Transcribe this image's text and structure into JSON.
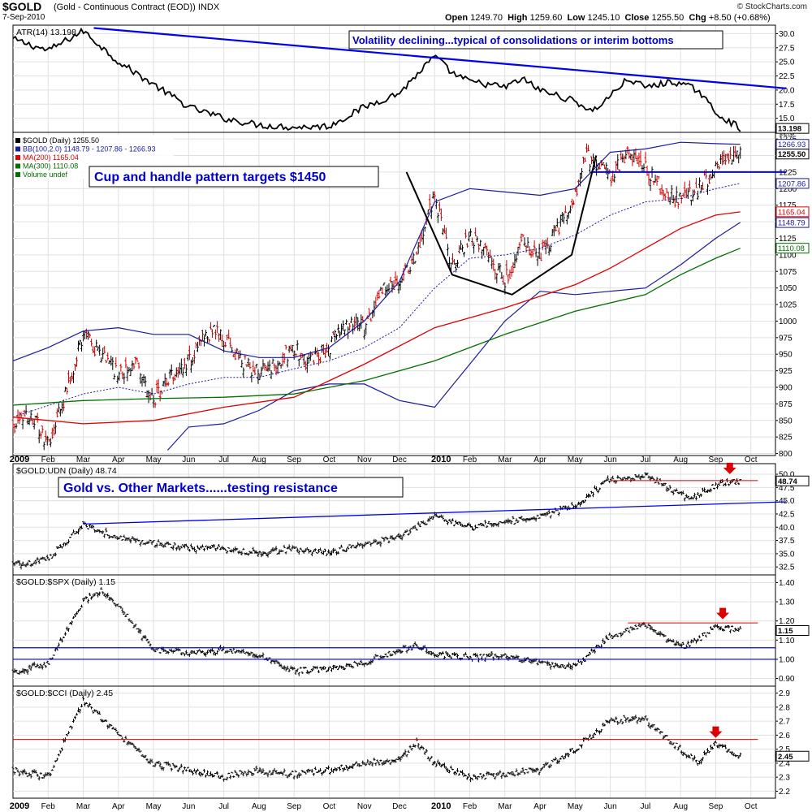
{
  "header": {
    "ticker": "$GOLD",
    "description": "(Gold - Continuous Contract (EOD))  INDX",
    "date": "7-Sep-2010",
    "quote": {
      "open_label": "Open",
      "open": "1249.70",
      "high_label": "High",
      "high": "1259.60",
      "low_label": "Low",
      "low": "1245.10",
      "close_label": "Close",
      "close": "1255.50",
      "chg_label": "Chg",
      "chg": "+8.50 (+0.68%)"
    },
    "credit": "© StockCharts.com",
    "arrow": "▲"
  },
  "colors": {
    "price_up": "#000000",
    "price_down": "#cc0000",
    "bollinger": "#1a1aa0",
    "ma200": "#e00000",
    "ma300": "#007000",
    "trend": "#0000ee",
    "resistance": "#dd0000",
    "annotation_text": "#0000cc",
    "grid": "#e0e0e0"
  },
  "chart_data": [
    {
      "id": "atr",
      "type": "line",
      "label": "ATR(14) 13.198",
      "y_ticks": [
        "30.0",
        "27.5",
        "25.0",
        "22.5",
        "20.0",
        "17.5",
        "15.0",
        "12.5"
      ],
      "ylim": [
        12.5,
        31.5
      ],
      "last_value": "13.198",
      "anchors": [
        [
          0,
          29
        ],
        [
          1,
          27
        ],
        [
          2,
          30.5
        ],
        [
          3,
          25
        ],
        [
          4,
          21
        ],
        [
          5,
          17
        ],
        [
          6,
          15
        ],
        [
          7,
          13.8
        ],
        [
          8,
          13.4
        ],
        [
          9,
          13.6
        ],
        [
          10,
          17
        ],
        [
          11,
          19.5
        ],
        [
          12,
          26
        ],
        [
          12.5,
          23
        ],
        [
          13,
          21.5
        ],
        [
          14,
          20.5
        ],
        [
          14.5,
          22
        ],
        [
          15,
          20
        ],
        [
          16,
          18
        ],
        [
          16.5,
          16.2
        ],
        [
          17,
          19
        ],
        [
          17.5,
          22
        ],
        [
          18,
          20.5
        ],
        [
          18.8,
          21.5
        ],
        [
          19.5,
          20
        ],
        [
          20,
          16
        ],
        [
          20.7,
          13.2
        ]
      ],
      "annotation": "Volatility declining...typical of consolidations or interim bottoms",
      "trendline": [
        [
          2.3,
          31
        ],
        [
          22,
          20.3
        ]
      ]
    },
    {
      "id": "price",
      "type": "ohlc",
      "legend": [
        {
          "text": "$GOLD (Daily) 1255.50",
          "color": "#000000"
        },
        {
          "text": "BB(100,2.0) 1148.79 - 1207.86 - 1266.93",
          "color": "#1a1aa0"
        },
        {
          "text": "MA(200) 1165.04",
          "color": "#e00000"
        },
        {
          "text": "MA(300) 1110.08",
          "color": "#007000"
        },
        {
          "text": "Volume undef",
          "color": "#007000"
        }
      ],
      "y_ticks": [
        "1275",
        "1250",
        "1225",
        "1200",
        "1175",
        "1150",
        "1125",
        "1100",
        "1075",
        "1050",
        "1025",
        "1000",
        "975",
        "950",
        "925",
        "900",
        "875",
        "850",
        "825",
        "800"
      ],
      "ylim": [
        797,
        1285
      ],
      "anchors": [
        [
          0,
          840
        ],
        [
          0.5,
          860
        ],
        [
          1,
          815
        ],
        [
          1.5,
          890
        ],
        [
          2,
          980
        ],
        [
          2.5,
          950
        ],
        [
          3,
          920
        ],
        [
          3.5,
          940
        ],
        [
          4,
          880
        ],
        [
          4.5,
          920
        ],
        [
          5,
          940
        ],
        [
          5.7,
          990
        ],
        [
          6.5,
          940
        ],
        [
          7,
          920
        ],
        [
          7.5,
          935
        ],
        [
          8,
          960
        ],
        [
          8.5,
          940
        ],
        [
          9,
          960
        ],
        [
          9.5,
          1000
        ],
        [
          10,
          990
        ],
        [
          10.5,
          1050
        ],
        [
          11,
          1060
        ],
        [
          11.5,
          1100
        ],
        [
          12,
          1190
        ],
        [
          12.5,
          1080
        ],
        [
          13,
          1130
        ],
        [
          13.5,
          1100
        ],
        [
          14,
          1060
        ],
        [
          14.5,
          1120
        ],
        [
          15,
          1100
        ],
        [
          15.5,
          1140
        ],
        [
          16,
          1190
        ],
        [
          16.3,
          1250
        ],
        [
          17,
          1220
        ],
        [
          17.5,
          1250
        ],
        [
          18,
          1230
        ],
        [
          18.5,
          1200
        ],
        [
          19,
          1180
        ],
        [
          19.5,
          1200
        ],
        [
          20,
          1230
        ],
        [
          20.7,
          1255
        ]
      ],
      "bb_upper": [
        [
          0,
          940
        ],
        [
          1,
          960
        ],
        [
          2,
          985
        ],
        [
          3,
          990
        ],
        [
          4,
          980
        ],
        [
          5,
          980
        ],
        [
          6,
          955
        ],
        [
          7,
          945
        ],
        [
          8,
          945
        ],
        [
          9,
          960
        ],
        [
          10,
          1000
        ],
        [
          11,
          1060
        ],
        [
          12,
          1180
        ],
        [
          13,
          1200
        ],
        [
          14,
          1195
        ],
        [
          15,
          1190
        ],
        [
          16,
          1200
        ],
        [
          17,
          1255
        ],
        [
          18,
          1260
        ],
        [
          19,
          1270
        ],
        [
          20,
          1268
        ],
        [
          20.7,
          1267
        ]
      ],
      "bb_mid": [
        [
          0,
          855
        ],
        [
          2,
          890
        ],
        [
          3,
          900
        ],
        [
          4,
          890
        ],
        [
          5,
          905
        ],
        [
          6,
          915
        ],
        [
          7,
          915
        ],
        [
          8,
          928
        ],
        [
          9,
          940
        ],
        [
          10,
          960
        ],
        [
          11,
          990
        ],
        [
          12,
          1050
        ],
        [
          13,
          1095
        ],
        [
          14,
          1100
        ],
        [
          15,
          1110
        ],
        [
          16,
          1130
        ],
        [
          17,
          1160
        ],
        [
          18,
          1180
        ],
        [
          19,
          1185
        ],
        [
          20,
          1200
        ],
        [
          20.7,
          1208
        ]
      ],
      "bb_lower": [
        [
          4.4,
          805
        ],
        [
          5,
          840
        ],
        [
          6,
          845
        ],
        [
          7,
          865
        ],
        [
          8,
          895
        ],
        [
          9,
          905
        ],
        [
          10,
          905
        ],
        [
          11,
          880
        ],
        [
          12,
          870
        ],
        [
          13,
          935
        ],
        [
          14,
          1000
        ],
        [
          15,
          1045
        ],
        [
          16,
          1040
        ],
        [
          17,
          1045
        ],
        [
          18,
          1050
        ],
        [
          19,
          1085
        ],
        [
          20,
          1125
        ],
        [
          20.7,
          1149
        ]
      ],
      "ma200": [
        [
          0,
          855
        ],
        [
          2,
          845
        ],
        [
          4,
          850
        ],
        [
          6,
          870
        ],
        [
          8,
          885
        ],
        [
          10,
          935
        ],
        [
          12,
          990
        ],
        [
          14,
          1020
        ],
        [
          16,
          1055
        ],
        [
          17,
          1080
        ],
        [
          18,
          1110
        ],
        [
          19,
          1140
        ],
        [
          20,
          1160
        ],
        [
          20.7,
          1165
        ]
      ],
      "ma300": [
        [
          0,
          873
        ],
        [
          2,
          880
        ],
        [
          4,
          883
        ],
        [
          6,
          885
        ],
        [
          8,
          890
        ],
        [
          10,
          910
        ],
        [
          12,
          940
        ],
        [
          14,
          980
        ],
        [
          16,
          1015
        ],
        [
          18,
          1040
        ],
        [
          19,
          1070
        ],
        [
          20,
          1095
        ],
        [
          20.7,
          1110
        ]
      ],
      "annotation": "Cup and handle pattern targets $1450",
      "cup_path": [
        [
          11.2,
          1225
        ],
        [
          12.5,
          1070
        ],
        [
          14.2,
          1040
        ],
        [
          15.9,
          1100
        ],
        [
          16.6,
          1250
        ]
      ],
      "handle_line": [
        [
          16.5,
          1225
        ],
        [
          22,
          1225
        ]
      ],
      "price_labels": [
        {
          "text": "1266.93",
          "value": 1266.93,
          "color": "#1a1aa0"
        },
        {
          "text": "1255.50",
          "value": 1255.5,
          "color": "#000000"
        },
        {
          "text": "1207.86",
          "value": 1207.86,
          "color": "#1a1aa0"
        },
        {
          "text": "1165.04",
          "value": 1165.04,
          "color": "#e00000"
        },
        {
          "text": "1148.79",
          "value": 1148.79,
          "color": "#1a1aa0"
        },
        {
          "text": "1110.08",
          "value": 1110.08,
          "color": "#007000"
        }
      ]
    },
    {
      "id": "udn",
      "type": "ohlc",
      "label": "$GOLD:UDN (Daily) 48.74",
      "y_ticks": [
        "50.0",
        "47.5",
        "45.0",
        "42.5",
        "40.0",
        "37.5",
        "35.0",
        "32.5"
      ],
      "ylim": [
        31,
        52
      ],
      "last_value": "48.74",
      "anchors": [
        [
          0,
          33
        ],
        [
          1,
          34
        ],
        [
          2,
          40.5
        ],
        [
          3,
          38
        ],
        [
          4,
          37
        ],
        [
          5,
          36
        ],
        [
          6,
          36
        ],
        [
          7,
          35
        ],
        [
          8,
          36
        ],
        [
          9,
          35
        ],
        [
          10,
          37
        ],
        [
          11,
          38
        ],
        [
          12,
          42
        ],
        [
          13,
          40
        ],
        [
          14,
          41
        ],
        [
          15,
          42
        ],
        [
          16,
          44
        ],
        [
          17,
          49
        ],
        [
          17.5,
          49
        ],
        [
          18,
          50
        ],
        [
          18.5,
          48
        ],
        [
          19,
          46
        ],
        [
          19.5,
          46
        ],
        [
          20,
          48
        ],
        [
          20.7,
          48.74
        ]
      ],
      "annotation": "Gold vs. Other Markets......testing resistance",
      "trendline": [
        [
          2,
          40.6
        ],
        [
          22,
          44.8
        ]
      ],
      "resistance": [
        [
          17,
          48.8
        ],
        [
          21.2,
          48.8
        ]
      ],
      "arrow_at": [
        20.4,
        50.8
      ]
    },
    {
      "id": "spx",
      "type": "ohlc",
      "label": "$GOLD:$SPX (Daily) 1.15",
      "y_ticks": [
        "1.40",
        "1.30",
        "1.20",
        "1.10",
        "1.00",
        "0.90"
      ],
      "ylim": [
        0.86,
        1.44
      ],
      "last_value": "1.15",
      "anchors": [
        [
          0,
          0.93
        ],
        [
          1,
          0.98
        ],
        [
          2,
          1.3
        ],
        [
          2.5,
          1.36
        ],
        [
          3,
          1.28
        ],
        [
          4,
          1.05
        ],
        [
          5,
          1.03
        ],
        [
          6,
          1.05
        ],
        [
          7,
          1.02
        ],
        [
          8,
          0.94
        ],
        [
          9,
          0.95
        ],
        [
          10,
          0.98
        ],
        [
          11,
          1.05
        ],
        [
          11.5,
          1.07
        ],
        [
          12,
          1.03
        ],
        [
          13,
          1.01
        ],
        [
          14,
          1.02
        ],
        [
          15,
          0.98
        ],
        [
          16,
          0.96
        ],
        [
          17,
          1.12
        ],
        [
          17.5,
          1.15
        ],
        [
          18,
          1.18
        ],
        [
          18.5,
          1.12
        ],
        [
          19,
          1.06
        ],
        [
          19.5,
          1.1
        ],
        [
          20,
          1.17
        ],
        [
          20.7,
          1.15
        ]
      ],
      "hlines": [
        1.06,
        1.0
      ],
      "resistance": [
        [
          17.5,
          1.19
        ],
        [
          21.2,
          1.19
        ]
      ],
      "arrow_at": [
        20.2,
        1.23
      ]
    },
    {
      "id": "cci",
      "type": "ohlc",
      "label": "$GOLD:$CCI (Daily) 2.45",
      "y_ticks": [
        "2.9",
        "2.8",
        "2.7",
        "2.6",
        "2.5",
        "2.4",
        "2.3",
        "2.2"
      ],
      "ylim": [
        2.15,
        2.95
      ],
      "last_value": "2.45",
      "anchors": [
        [
          0,
          2.35
        ],
        [
          1,
          2.3
        ],
        [
          2,
          2.85
        ],
        [
          3,
          2.6
        ],
        [
          4,
          2.4
        ],
        [
          5,
          2.35
        ],
        [
          6,
          2.3
        ],
        [
          7,
          2.35
        ],
        [
          8,
          2.32
        ],
        [
          9,
          2.35
        ],
        [
          10,
          2.4
        ],
        [
          11,
          2.42
        ],
        [
          11.5,
          2.55
        ],
        [
          12,
          2.4
        ],
        [
          13,
          2.3
        ],
        [
          14,
          2.32
        ],
        [
          15,
          2.35
        ],
        [
          16,
          2.5
        ],
        [
          17,
          2.7
        ],
        [
          18,
          2.72
        ],
        [
          18.5,
          2.6
        ],
        [
          19,
          2.5
        ],
        [
          19.5,
          2.4
        ],
        [
          20,
          2.55
        ],
        [
          20.7,
          2.45
        ]
      ],
      "resistance": [
        [
          0,
          2.57
        ],
        [
          21.2,
          2.57
        ]
      ],
      "arrow_at": [
        20,
        2.61
      ]
    }
  ],
  "x_axis": {
    "labels": [
      "2009",
      "Feb",
      "Mar",
      "Apr",
      "May",
      "Jun",
      "Jul",
      "Aug",
      "Sep",
      "Oct",
      "Nov",
      "Dec",
      "2010",
      "Feb",
      "Mar",
      "Apr",
      "May",
      "Jun",
      "Jul",
      "Aug",
      "Sep",
      "Oct"
    ],
    "bold": [
      "2009",
      "2010"
    ]
  }
}
